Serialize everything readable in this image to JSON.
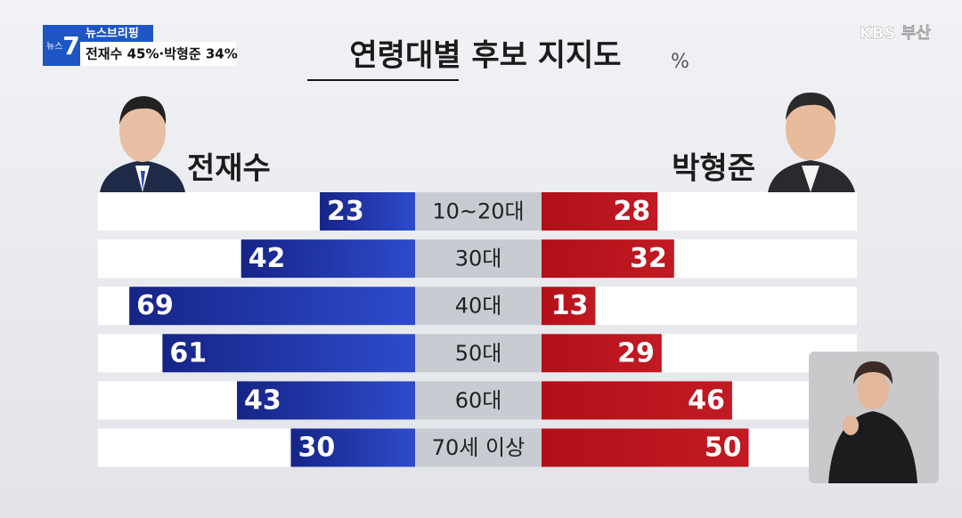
{
  "broadcast": {
    "program_top": "뉴스",
    "program_number": "7",
    "segment": "뉴스브리핑",
    "headline": "전재수 45%·박형준 34%",
    "channel": "KBS 부산"
  },
  "chart_data": {
    "type": "butterfly-bar",
    "title": "연령대별 후보 지지도",
    "unit": "%",
    "categories": [
      "10~20대",
      "30대",
      "40대",
      "50대",
      "60대",
      "70세 이상"
    ],
    "series": [
      {
        "name": "전재수",
        "color": "#1f33a8",
        "values": [
          23,
          42,
          69,
          61,
          43,
          30
        ]
      },
      {
        "name": "박형준",
        "color": "#b3121d",
        "values": [
          28,
          32,
          13,
          29,
          46,
          50
        ]
      }
    ]
  }
}
